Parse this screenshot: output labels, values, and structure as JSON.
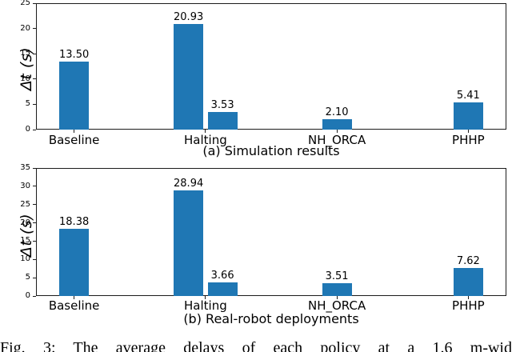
{
  "figure_caption": "Fig. 3: The average delays of each policy at a 1.6 m-wid",
  "chart_data": [
    {
      "type": "bar",
      "title": "(a) Simulation results",
      "ylabel": "Δt (s)",
      "xlabel": "",
      "ylim": [
        0,
        25
      ],
      "yticks": [
        0,
        5,
        10,
        15,
        20,
        25
      ],
      "categories": [
        "Baseline",
        "Halting",
        "NH_ORCA",
        "PHHP"
      ],
      "bars": [
        {
          "category": "Baseline",
          "value": 13.5,
          "label": "13.50"
        },
        {
          "category": "Halting",
          "value": 20.93,
          "label": "20.93"
        },
        {
          "category": "Halting",
          "value": 3.53,
          "label": "3.53"
        },
        {
          "category": "NH_ORCA",
          "value": 2.1,
          "label": "2.10"
        },
        {
          "category": "PHHP",
          "value": 5.41,
          "label": "5.41"
        }
      ],
      "bar_color": "#1f77b4",
      "grid": false,
      "legend": null
    },
    {
      "type": "bar",
      "title": "(b) Real-robot deployments",
      "ylabel": "Δt (s)",
      "xlabel": "",
      "ylim": [
        0,
        35
      ],
      "yticks": [
        0,
        5,
        10,
        15,
        20,
        25,
        30,
        35
      ],
      "categories": [
        "Baseline",
        "Halting",
        "NH_ORCA",
        "PHHP"
      ],
      "bars": [
        {
          "category": "Baseline",
          "value": 18.38,
          "label": "18.38"
        },
        {
          "category": "Halting",
          "value": 28.94,
          "label": "28.94"
        },
        {
          "category": "Halting",
          "value": 3.66,
          "label": "3.66"
        },
        {
          "category": "NH_ORCA",
          "value": 3.51,
          "label": "3.51"
        },
        {
          "category": "PHHP",
          "value": 7.62,
          "label": "7.62"
        }
      ],
      "bar_color": "#1f77b4",
      "grid": false,
      "legend": null
    }
  ]
}
